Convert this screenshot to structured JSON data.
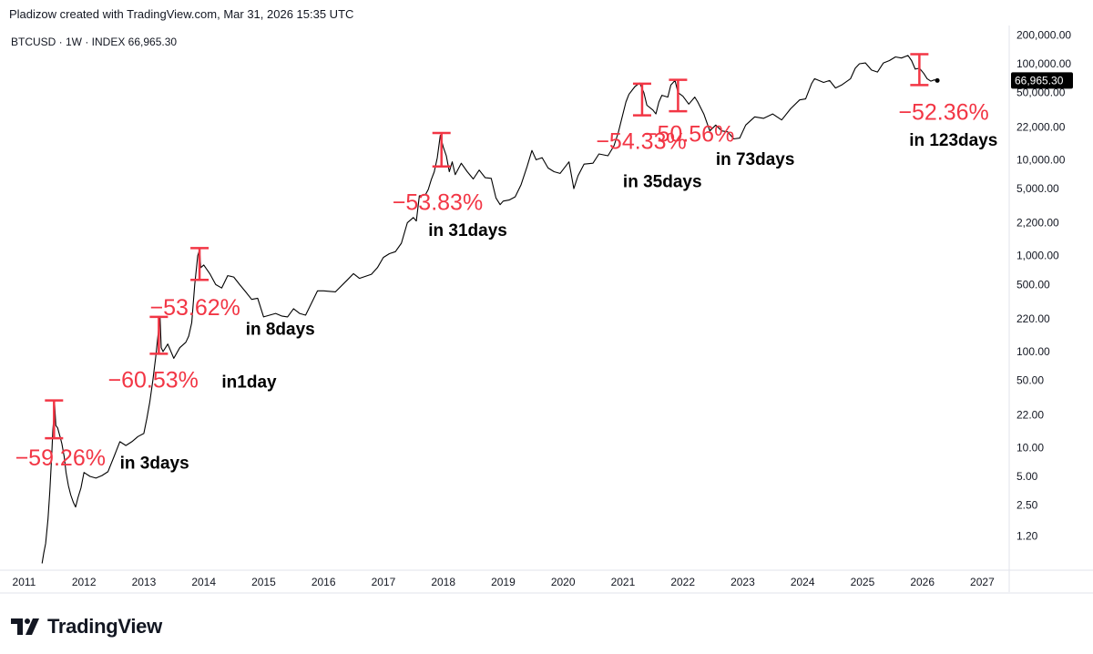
{
  "header": {
    "credit": "Pladizow created with TradingView.com, Mar 31, 2026 15:35 UTC"
  },
  "branding": {
    "logo_text": "TradingView"
  },
  "colors": {
    "price_line": "#000000",
    "annotation": "#f23645",
    "axis_text": "#131722",
    "last_price_bg": "#000000"
  },
  "chart_data": {
    "type": "line",
    "symbol_label": "BTCUSD · 1W · INDEX",
    "last_price": 66965.3,
    "last_price_label": "66,965.30",
    "scale": "log",
    "xlim": [
      2010.75,
      2027.45
    ],
    "ylim": [
      0.55,
      240000
    ],
    "x_ticks": [
      "2011",
      "2012",
      "2013",
      "2014",
      "2015",
      "2016",
      "2017",
      "2018",
      "2019",
      "2020",
      "2021",
      "2022",
      "2023",
      "2024",
      "2025",
      "2026",
      "2027"
    ],
    "y_ticks": [
      {
        "v": 200000,
        "label": "200,000.00"
      },
      {
        "v": 100000,
        "label": "100,000.00"
      },
      {
        "v": 50000,
        "label": "50,000.00"
      },
      {
        "v": 22000,
        "label": "22,000.00"
      },
      {
        "v": 10000,
        "label": "10,000.00"
      },
      {
        "v": 5000,
        "label": "5,000.00"
      },
      {
        "v": 2200,
        "label": "2,200.00"
      },
      {
        "v": 1000,
        "label": "1,000.00"
      },
      {
        "v": 500,
        "label": "500.00"
      },
      {
        "v": 220,
        "label": "220.00"
      },
      {
        "v": 100,
        "label": "100.00"
      },
      {
        "v": 50,
        "label": "50.00"
      },
      {
        "v": 22,
        "label": "22.00"
      },
      {
        "v": 10,
        "label": "10.00"
      },
      {
        "v": 5,
        "label": "5.00"
      },
      {
        "v": 2.5,
        "label": "2.50"
      },
      {
        "v": 1.2,
        "label": "1.20"
      }
    ],
    "series": [
      {
        "name": "BTCUSD",
        "points": [
          [
            2011.3,
            0.62
          ],
          [
            2011.33,
            0.8
          ],
          [
            2011.36,
            1.0
          ],
          [
            2011.4,
            1.8
          ],
          [
            2011.43,
            3.5
          ],
          [
            2011.46,
            8.0
          ],
          [
            2011.48,
            15.0
          ],
          [
            2011.5,
            22.0
          ],
          [
            2011.51,
            28.0
          ],
          [
            2011.53,
            17.0
          ],
          [
            2011.56,
            16.0
          ],
          [
            2011.6,
            13.0
          ],
          [
            2011.63,
            11.0
          ],
          [
            2011.67,
            8.0
          ],
          [
            2011.7,
            5.5
          ],
          [
            2011.74,
            4.0
          ],
          [
            2011.78,
            3.2
          ],
          [
            2011.82,
            2.7
          ],
          [
            2011.86,
            2.4
          ],
          [
            2011.9,
            3.0
          ],
          [
            2011.95,
            3.8
          ],
          [
            2012.0,
            5.5
          ],
          [
            2012.1,
            5.0
          ],
          [
            2012.2,
            4.8
          ],
          [
            2012.3,
            5.1
          ],
          [
            2012.4,
            5.6
          ],
          [
            2012.5,
            8.0
          ],
          [
            2012.6,
            11.5
          ],
          [
            2012.7,
            10.5
          ],
          [
            2012.8,
            11.5
          ],
          [
            2012.9,
            13.0
          ],
          [
            2013.0,
            14.0
          ],
          [
            2013.05,
            20.0
          ],
          [
            2013.1,
            30.0
          ],
          [
            2013.15,
            50.0
          ],
          [
            2013.2,
            90.0
          ],
          [
            2013.25,
            180.0
          ],
          [
            2013.27,
            230.0
          ],
          [
            2013.29,
            110.0
          ],
          [
            2013.32,
            100.0
          ],
          [
            2013.4,
            120.0
          ],
          [
            2013.5,
            85.0
          ],
          [
            2013.6,
            110.0
          ],
          [
            2013.7,
            125.0
          ],
          [
            2013.75,
            145.0
          ],
          [
            2013.8,
            200.0
          ],
          [
            2013.85,
            500.0
          ],
          [
            2013.9,
            1000.0
          ],
          [
            2013.93,
            1150.0
          ],
          [
            2013.95,
            750.0
          ],
          [
            2014.0,
            800.0
          ],
          [
            2014.1,
            650.0
          ],
          [
            2014.2,
            500.0
          ],
          [
            2014.3,
            460.0
          ],
          [
            2014.4,
            620.0
          ],
          [
            2014.5,
            600.0
          ],
          [
            2014.6,
            500.0
          ],
          [
            2014.7,
            420.0
          ],
          [
            2014.8,
            350.0
          ],
          [
            2014.9,
            360.0
          ],
          [
            2015.0,
            230.0
          ],
          [
            2015.1,
            240.0
          ],
          [
            2015.2,
            250.0
          ],
          [
            2015.3,
            235.0
          ],
          [
            2015.4,
            230.0
          ],
          [
            2015.5,
            280.0
          ],
          [
            2015.6,
            250.0
          ],
          [
            2015.7,
            240.0
          ],
          [
            2015.8,
            320.0
          ],
          [
            2015.9,
            430.0
          ],
          [
            2016.0,
            430.0
          ],
          [
            2016.2,
            420.0
          ],
          [
            2016.4,
            560.0
          ],
          [
            2016.5,
            650.0
          ],
          [
            2016.6,
            580.0
          ],
          [
            2016.8,
            640.0
          ],
          [
            2016.9,
            750.0
          ],
          [
            2017.0,
            960.0
          ],
          [
            2017.1,
            1050.0
          ],
          [
            2017.2,
            1100.0
          ],
          [
            2017.3,
            1350.0
          ],
          [
            2017.4,
            2200.0
          ],
          [
            2017.5,
            2500.0
          ],
          [
            2017.55,
            2300.0
          ],
          [
            2017.6,
            4200.0
          ],
          [
            2017.7,
            4300.0
          ],
          [
            2017.75,
            4900.0
          ],
          [
            2017.8,
            6200.0
          ],
          [
            2017.85,
            7500.0
          ],
          [
            2017.9,
            10500.0
          ],
          [
            2017.95,
            18000.0
          ],
          [
            2018.0,
            13500.0
          ],
          [
            2018.05,
            11000.0
          ],
          [
            2018.1,
            7500.0
          ],
          [
            2018.15,
            9500.0
          ],
          [
            2018.2,
            7000.0
          ],
          [
            2018.3,
            9200.0
          ],
          [
            2018.4,
            7500.0
          ],
          [
            2018.5,
            6300.0
          ],
          [
            2018.6,
            7800.0
          ],
          [
            2018.7,
            6500.0
          ],
          [
            2018.8,
            6400.0
          ],
          [
            2018.88,
            4000.0
          ],
          [
            2018.95,
            3400.0
          ],
          [
            2019.0,
            3700.0
          ],
          [
            2019.1,
            3800.0
          ],
          [
            2019.2,
            4100.0
          ],
          [
            2019.3,
            5500.0
          ],
          [
            2019.4,
            8500.0
          ],
          [
            2019.48,
            12500.0
          ],
          [
            2019.55,
            10000.0
          ],
          [
            2019.65,
            10500.0
          ],
          [
            2019.75,
            8200.0
          ],
          [
            2019.85,
            7500.0
          ],
          [
            2019.95,
            7200.0
          ],
          [
            2020.1,
            9500.0
          ],
          [
            2020.18,
            5000.0
          ],
          [
            2020.25,
            6800.0
          ],
          [
            2020.35,
            9000.0
          ],
          [
            2020.5,
            9200.0
          ],
          [
            2020.6,
            11500.0
          ],
          [
            2020.75,
            11000.0
          ],
          [
            2020.85,
            14000.0
          ],
          [
            2020.92,
            19000.0
          ],
          [
            2021.0,
            30000.0
          ],
          [
            2021.05,
            40000.0
          ],
          [
            2021.1,
            48000.0
          ],
          [
            2021.2,
            58000.0
          ],
          [
            2021.28,
            63000.0
          ],
          [
            2021.35,
            50000.0
          ],
          [
            2021.4,
            37000.0
          ],
          [
            2021.5,
            33000.0
          ],
          [
            2021.55,
            30000.0
          ],
          [
            2021.6,
            40000.0
          ],
          [
            2021.65,
            47000.0
          ],
          [
            2021.75,
            45000.0
          ],
          [
            2021.8,
            60000.0
          ],
          [
            2021.87,
            67000.0
          ],
          [
            2021.92,
            50000.0
          ],
          [
            2022.0,
            46000.0
          ],
          [
            2022.1,
            38000.0
          ],
          [
            2022.2,
            45000.0
          ],
          [
            2022.25,
            40000.0
          ],
          [
            2022.35,
            30000.0
          ],
          [
            2022.45,
            20000.0
          ],
          [
            2022.55,
            23000.0
          ],
          [
            2022.65,
            20000.0
          ],
          [
            2022.75,
            19500.0
          ],
          [
            2022.85,
            16500.0
          ],
          [
            2022.95,
            16800.0
          ],
          [
            2023.05,
            23000.0
          ],
          [
            2023.2,
            28000.0
          ],
          [
            2023.35,
            27000.0
          ],
          [
            2023.5,
            30000.0
          ],
          [
            2023.65,
            26000.0
          ],
          [
            2023.8,
            34000.0
          ],
          [
            2023.95,
            42000.0
          ],
          [
            2024.05,
            43000.0
          ],
          [
            2024.15,
            62000.0
          ],
          [
            2024.2,
            70000.0
          ],
          [
            2024.35,
            64000.0
          ],
          [
            2024.45,
            67000.0
          ],
          [
            2024.55,
            56000.0
          ],
          [
            2024.65,
            60000.0
          ],
          [
            2024.8,
            70000.0
          ],
          [
            2024.88,
            90000.0
          ],
          [
            2024.95,
            100000.0
          ],
          [
            2025.05,
            102000.0
          ],
          [
            2025.15,
            86000.0
          ],
          [
            2025.25,
            82000.0
          ],
          [
            2025.35,
            102000.0
          ],
          [
            2025.45,
            108000.0
          ],
          [
            2025.55,
            118000.0
          ],
          [
            2025.65,
            115000.0
          ],
          [
            2025.76,
            122000.0
          ],
          [
            2025.82,
            108000.0
          ],
          [
            2025.88,
            88000.0
          ],
          [
            2025.95,
            90000.0
          ],
          [
            2026.02,
            80000.0
          ],
          [
            2026.08,
            70000.0
          ],
          [
            2026.14,
            66000.0
          ],
          [
            2026.2,
            68000.0
          ],
          [
            2026.25,
            66965.3
          ]
        ]
      }
    ],
    "drawdowns": [
      {
        "pct": "−59.26%",
        "duration": "in 3days",
        "bar_x": 2011.5,
        "high": 31.0,
        "low": 12.5,
        "pct_x": 2010.85,
        "pct_y": 6.5,
        "dur_x": 2012.6,
        "dur_y": 6.0
      },
      {
        "pct": "−60.53%",
        "duration": "in1day",
        "bar_x": 2013.25,
        "high": 230.0,
        "low": 95.0,
        "pct_x": 2012.4,
        "pct_y": 42.0,
        "dur_x": 2014.3,
        "dur_y": 42.0
      },
      {
        "pct": "−53.62%",
        "duration": "in 8days",
        "bar_x": 2013.93,
        "high": 1200.0,
        "low": 560.0,
        "pct_x": 2013.1,
        "pct_y": 240.0,
        "dur_x": 2014.7,
        "dur_y": 150.0
      },
      {
        "pct": "−53.83%",
        "duration": "in 31days",
        "bar_x": 2017.97,
        "high": 19000.0,
        "low": 8500.0,
        "pct_x": 2017.15,
        "pct_y": 3000.0,
        "dur_x": 2017.75,
        "dur_y": 1600.0
      },
      {
        "pct": "−54.33%",
        "duration": "in 35days",
        "bar_x": 2021.32,
        "high": 62000.0,
        "low": 29000.0,
        "pct_x": 2020.55,
        "pct_y": 13000.0,
        "dur_x": 2021.0,
        "dur_y": 5200.0
      },
      {
        "pct": "−50.56%",
        "duration": "in 73days",
        "bar_x": 2021.92,
        "high": 68000.0,
        "low": 32000.0,
        "pct_x": 2021.35,
        "pct_y": 15500.0,
        "dur_x": 2022.55,
        "dur_y": 8800.0
      },
      {
        "pct": "−52.36%",
        "duration": "in 123days",
        "bar_x": 2025.95,
        "high": 126000.0,
        "low": 60000.0,
        "pct_x": 2025.6,
        "pct_y": 26000.0,
        "dur_x": 2025.78,
        "dur_y": 14000.0
      }
    ]
  }
}
